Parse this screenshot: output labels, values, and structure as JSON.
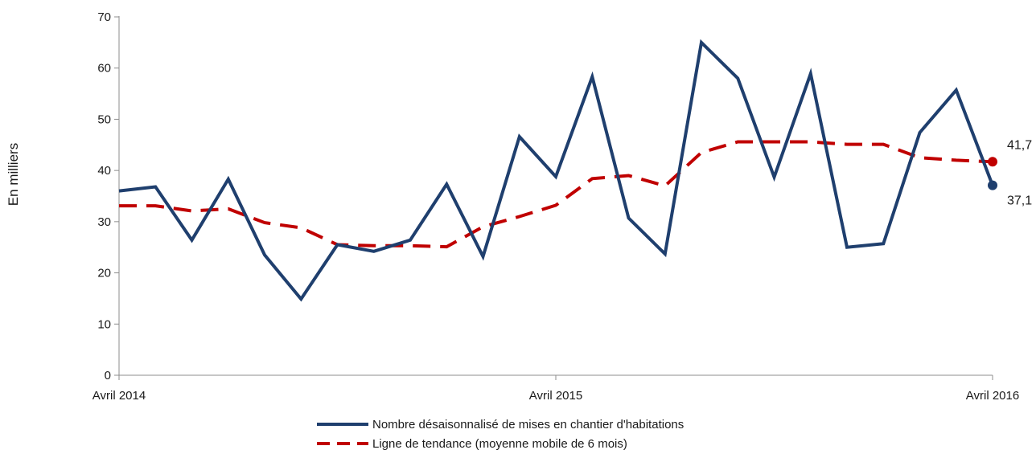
{
  "chart_data": {
    "type": "line",
    "ylabel": "En milliers",
    "ylim": [
      0,
      70
    ],
    "yticks": [
      0,
      10,
      20,
      30,
      40,
      50,
      60,
      70
    ],
    "x_tick_labels": [
      "Avril 2014",
      "Avril 2015",
      "Avril 2016"
    ],
    "x_tick_positions": [
      0,
      12,
      24
    ],
    "x": [
      0,
      1,
      2,
      3,
      4,
      5,
      6,
      7,
      8,
      9,
      10,
      11,
      12,
      13,
      14,
      15,
      16,
      17,
      18,
      19,
      20,
      21,
      22,
      23,
      24
    ],
    "series": [
      {
        "name": "Nombre désaisonnalisé de mises en chantier d'habitations",
        "color": "#1f3f6e",
        "style": "solid",
        "values": [
          36.0,
          36.8,
          26.4,
          38.3,
          23.5,
          14.9,
          25.5,
          24.2,
          26.4,
          37.3,
          23.2,
          46.6,
          38.8,
          58.3,
          30.7,
          23.7,
          65.0,
          58.0,
          38.7,
          58.9,
          25.0,
          25.7,
          47.4,
          55.7,
          37.1
        ]
      },
      {
        "name": "Ligne de tendance (moyenne mobile de 6 mois)",
        "color": "#c00000",
        "style": "dashed",
        "values": [
          33.1,
          33.1,
          32.1,
          32.5,
          29.8,
          28.8,
          25.5,
          25.3,
          25.3,
          25.1,
          29.0,
          31.0,
          33.2,
          38.4,
          39.0,
          37.0,
          43.5,
          45.6,
          45.6,
          45.6,
          45.1,
          45.1,
          42.5,
          42.0,
          41.7
        ]
      }
    ],
    "end_labels": [
      {
        "series": 1,
        "text": "41,7"
      },
      {
        "series": 0,
        "text": "37,1"
      }
    ],
    "grid": false,
    "legend_position": "bottom"
  }
}
